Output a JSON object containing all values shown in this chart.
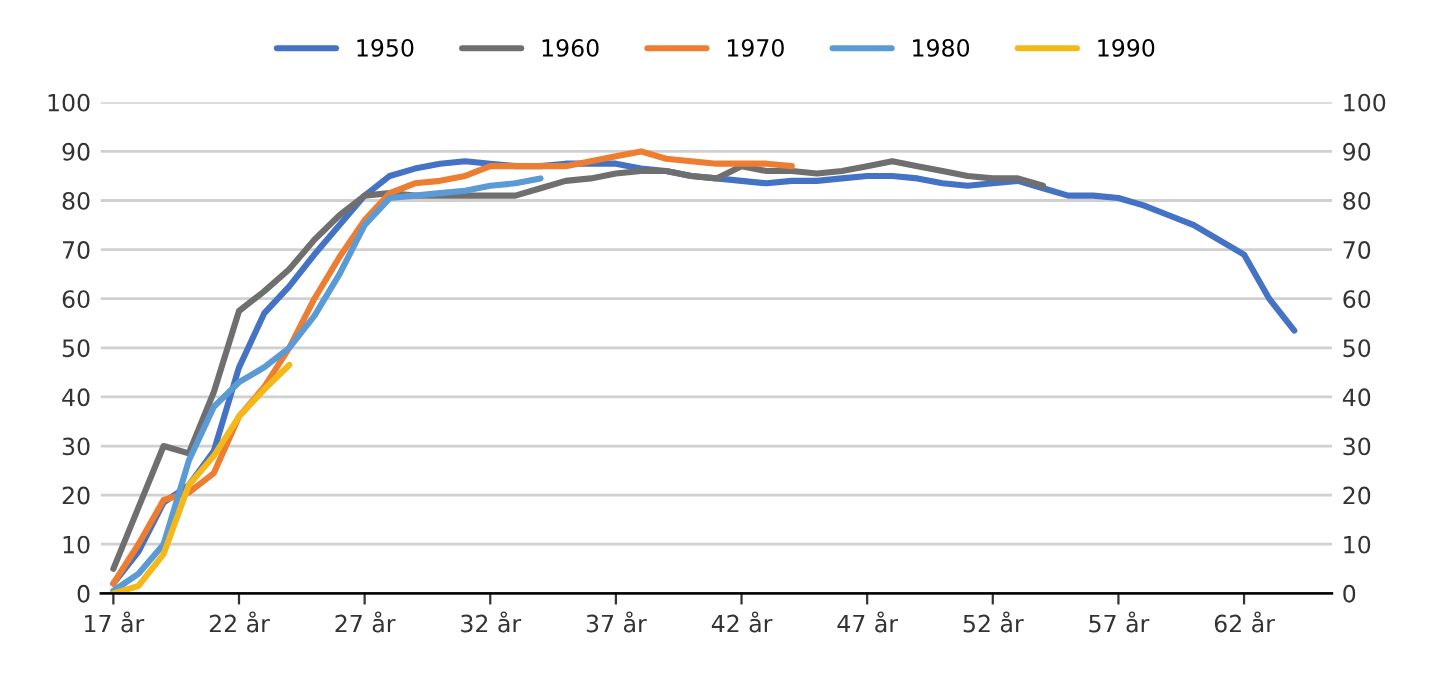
{
  "chart_data": {
    "type": "line",
    "x": [
      17,
      18,
      19,
      20,
      21,
      22,
      23,
      24,
      25,
      26,
      27,
      28,
      29,
      30,
      31,
      32,
      33,
      34,
      35,
      36,
      37,
      38,
      39,
      40,
      41,
      42,
      43,
      44,
      45,
      46,
      47,
      48,
      49,
      50,
      51,
      52,
      53,
      54,
      55,
      56,
      57,
      58,
      59,
      60,
      61,
      62,
      63,
      64
    ],
    "series": [
      {
        "name": "1950",
        "color": "#4472c4",
        "values": [
          2,
          8.5,
          18.5,
          22,
          29,
          46,
          57,
          62.5,
          69,
          75,
          81,
          85,
          86.5,
          87.5,
          88,
          87.5,
          87,
          87,
          87.5,
          87.5,
          87.5,
          86.5,
          86,
          85,
          84.5,
          84,
          83.5,
          84,
          84,
          84.5,
          85,
          85,
          84.5,
          83.5,
          83,
          83.5,
          84,
          82.5,
          81,
          81,
          80.5,
          79,
          77,
          75,
          72,
          69,
          60,
          53.5
        ]
      },
      {
        "name": "1960",
        "color": "#6f6f6f",
        "values": [
          5,
          17.5,
          30,
          28.5,
          41,
          57.5,
          61.5,
          66,
          72,
          77,
          81,
          81.5,
          81,
          81,
          81,
          81,
          81,
          82.5,
          84,
          84.5,
          85.5,
          86,
          86,
          85,
          84.5,
          87,
          86,
          86,
          85.5,
          86,
          87,
          88,
          87,
          86,
          85,
          84.5,
          84.5,
          83,
          null,
          null,
          null,
          null,
          null,
          null,
          null,
          null,
          null,
          null
        ]
      },
      {
        "name": "1970",
        "color": "#ed7d31",
        "values": [
          2,
          10,
          19,
          20.5,
          24.5,
          36,
          42,
          50,
          60,
          68.5,
          76,
          81.5,
          83.5,
          84,
          85,
          87,
          87,
          87,
          87,
          88,
          89,
          90,
          88.5,
          88,
          87.5,
          87.5,
          87.5,
          87,
          null,
          null,
          null,
          null,
          null,
          null,
          null,
          null,
          null,
          null,
          null,
          null,
          null,
          null,
          null,
          null,
          null,
          null,
          null,
          null
        ]
      },
      {
        "name": "1980",
        "color": "#5b9bd5",
        "values": [
          0.5,
          4,
          10,
          27,
          38,
          43,
          46,
          50,
          56.5,
          65,
          75,
          80.5,
          81,
          81.5,
          82,
          83,
          83.5,
          84.5,
          null,
          null,
          null,
          null,
          null,
          null,
          null,
          null,
          null,
          null,
          null,
          null,
          null,
          null,
          null,
          null,
          null,
          null,
          null,
          null,
          null,
          null,
          null,
          null,
          null,
          null,
          null,
          null,
          null,
          null
        ]
      },
      {
        "name": "1990",
        "color": "#f4b919",
        "values": [
          0,
          1.5,
          8,
          22,
          28,
          36,
          41.5,
          46.5,
          null,
          null,
          null,
          null,
          null,
          null,
          null,
          null,
          null,
          null,
          null,
          null,
          null,
          null,
          null,
          null,
          null,
          null,
          null,
          null,
          null,
          null,
          null,
          null,
          null,
          null,
          null,
          null,
          null,
          null,
          null,
          null,
          null,
          null,
          null,
          null,
          null,
          null,
          null,
          null
        ]
      }
    ],
    "xlim": [
      16.5,
      65.5
    ],
    "xticks": [
      {
        "value": 17,
        "label": "17 år"
      },
      {
        "value": 22,
        "label": "22 år"
      },
      {
        "value": 27,
        "label": "27 år"
      },
      {
        "value": 32,
        "label": "32 år"
      },
      {
        "value": 37,
        "label": "37 år"
      },
      {
        "value": 42,
        "label": "42 år"
      },
      {
        "value": 47,
        "label": "47 år"
      },
      {
        "value": 52,
        "label": "52 år"
      },
      {
        "value": 57,
        "label": "57 år"
      },
      {
        "value": 62,
        "label": "62 år"
      }
    ],
    "ylim": [
      0,
      100
    ],
    "yticks": [
      0,
      10,
      20,
      30,
      40,
      50,
      60,
      70,
      80,
      90,
      100
    ],
    "y2lim": [
      0,
      100
    ],
    "y2ticks": [
      0,
      10,
      20,
      30,
      40,
      50,
      60,
      70,
      80,
      90,
      100
    ],
    "grid": "y",
    "legend": "top",
    "marker": "none",
    "line_style": "solid"
  }
}
